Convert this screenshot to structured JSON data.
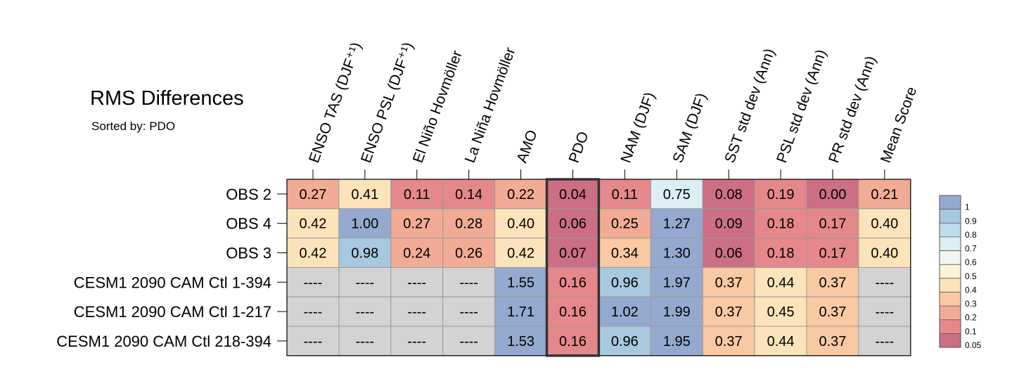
{
  "chart_data": {
    "type": "heatmap",
    "title": "RMS Differences",
    "subtitle": "Sorted by: PDO",
    "columns": [
      "ENSO TAS (DJF⁺¹)",
      "ENSO PSL (DJF⁺¹)",
      "El Niño Hovmöller",
      "La Niña Hovmöller",
      "AMO",
      "PDO",
      "NAM (DJF)",
      "SAM (DJF)",
      "SST std dev (Ann)",
      "PSL std dev (Ann)",
      "PR std dev (Ann)",
      "Mean Score"
    ],
    "rows": [
      "OBS 2",
      "OBS 4",
      "OBS 3",
      "CESM1 2090 CAM Ctl 1-394",
      "CESM1 2090 CAM Ctl 1-217",
      "CESM1 2090 CAM Ctl 218-394"
    ],
    "values": [
      [
        0.27,
        0.41,
        0.11,
        0.14,
        0.22,
        0.04,
        0.11,
        0.75,
        0.08,
        0.19,
        0.0,
        0.21
      ],
      [
        0.42,
        1.0,
        0.27,
        0.28,
        0.4,
        0.06,
        0.25,
        1.27,
        0.09,
        0.18,
        0.17,
        0.4
      ],
      [
        0.42,
        0.98,
        0.24,
        0.26,
        0.42,
        0.07,
        0.34,
        1.3,
        0.06,
        0.18,
        0.17,
        0.4
      ],
      [
        null,
        null,
        null,
        null,
        1.55,
        0.16,
        0.96,
        1.97,
        0.37,
        0.44,
        0.37,
        null
      ],
      [
        null,
        null,
        null,
        null,
        1.71,
        0.16,
        1.02,
        1.99,
        0.37,
        0.45,
        0.37,
        null
      ],
      [
        null,
        null,
        null,
        null,
        1.53,
        0.16,
        0.96,
        1.95,
        0.37,
        0.44,
        0.37,
        null
      ]
    ],
    "missing_label": "----",
    "highlighted_column": "PDO",
    "colorbar": {
      "labels": [
        "1",
        "0.9",
        "0.8",
        "0.7",
        "0.6",
        "0.5",
        "0.4",
        "0.3",
        "0.2",
        "0.1",
        "0.05"
      ],
      "colors": [
        "#95a9d0",
        "#a8c8e0",
        "#bcdde9",
        "#daeef3",
        "#f2f6ee",
        "#fcf4d4",
        "#fde3ba",
        "#f8c9a3",
        "#f2ab95",
        "#e5888c",
        "#cc6f84"
      ]
    },
    "missing_color": "#d3d3d3"
  }
}
